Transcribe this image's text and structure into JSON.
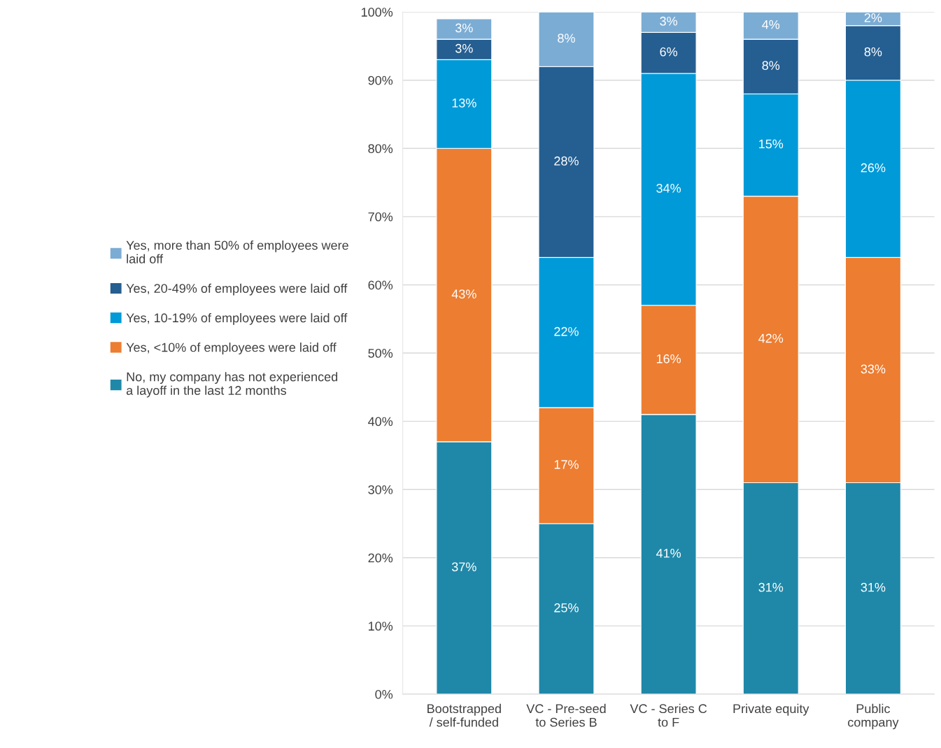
{
  "chart_data": {
    "type": "bar",
    "stacked": true,
    "categories": [
      "Bootstrapped\n/ self-funded",
      "VC - Pre-seed\nto Series B",
      "VC - Series C\nto F",
      "Private equity",
      "Public\ncompany"
    ],
    "series": [
      {
        "name": "No, my company has not experienced\na layoff in the last 12 months",
        "color": "#1f88a8",
        "values": [
          37,
          25,
          41,
          31,
          31
        ],
        "value_labels": [
          "37%",
          "25%",
          "41%",
          "31%",
          "31%"
        ]
      },
      {
        "name": "Yes, <10% of employees were laid off",
        "color": "#ed7d31",
        "values": [
          43,
          17,
          16,
          42,
          33
        ],
        "value_labels": [
          "43%",
          "17%",
          "16%",
          "42%",
          "33%"
        ]
      },
      {
        "name": "Yes, 10-19% of employees were laid off",
        "color": "#009ad8",
        "values": [
          13,
          22,
          34,
          15,
          26
        ],
        "value_labels": [
          "13%",
          "22%",
          "34%",
          "15%",
          "26%"
        ]
      },
      {
        "name": "Yes, 20-49% of employees were laid off",
        "color": "#255e91",
        "values": [
          3,
          28,
          6,
          8,
          8
        ],
        "value_labels": [
          "3%",
          "28%",
          "6%",
          "8%",
          "8%"
        ]
      },
      {
        "name": "Yes, more than 50% of employees were\nlaid off",
        "color": "#7bacd4",
        "values": [
          3,
          8,
          3,
          4,
          2
        ],
        "value_labels": [
          "3%",
          "8%",
          "3%",
          "4%",
          "2%"
        ]
      }
    ],
    "ylim": [
      0,
      100
    ],
    "yticks": [
      {
        "value": 0,
        "label": "0%"
      },
      {
        "value": 10,
        "label": "10%"
      },
      {
        "value": 20,
        "label": "20%"
      },
      {
        "value": 30,
        "label": "30%"
      },
      {
        "value": 40,
        "label": "40%"
      },
      {
        "value": 50,
        "label": "50%"
      },
      {
        "value": 60,
        "label": "60%"
      },
      {
        "value": 70,
        "label": "70%"
      },
      {
        "value": 80,
        "label": "80%"
      },
      {
        "value": 90,
        "label": "90%"
      },
      {
        "value": 100,
        "label": "100%"
      }
    ],
    "grid": "y",
    "legend": "left"
  }
}
